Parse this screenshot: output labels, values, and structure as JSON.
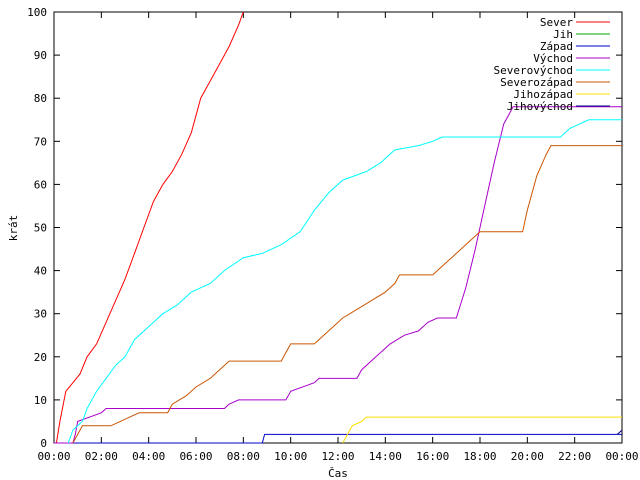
{
  "chart_data": {
    "type": "line",
    "title": "",
    "xlabel": "Čas",
    "ylabel": "krát",
    "ylim": [
      0,
      100
    ],
    "xlim": [
      0,
      24
    ],
    "x_unit": "hours",
    "yticks": [
      0,
      10,
      20,
      30,
      40,
      50,
      60,
      70,
      80,
      90,
      100
    ],
    "xticks": [
      {
        "value": 0,
        "label": "00:00"
      },
      {
        "value": 2,
        "label": "02:00"
      },
      {
        "value": 4,
        "label": "04:00"
      },
      {
        "value": 6,
        "label": "06:00"
      },
      {
        "value": 8,
        "label": "08:00"
      },
      {
        "value": 10,
        "label": "10:00"
      },
      {
        "value": 12,
        "label": "12:00"
      },
      {
        "value": 14,
        "label": "14:00"
      },
      {
        "value": 16,
        "label": "16:00"
      },
      {
        "value": 18,
        "label": "18:00"
      },
      {
        "value": 20,
        "label": "20:00"
      },
      {
        "value": 22,
        "label": "22:00"
      },
      {
        "value": 24,
        "label": "00:00"
      }
    ],
    "grid": false,
    "legend_position": "top-right",
    "series": [
      {
        "name": "Sever",
        "color": "#ff0000",
        "points": [
          [
            0.1,
            0
          ],
          [
            0.25,
            5
          ],
          [
            0.5,
            12
          ],
          [
            0.8,
            14
          ],
          [
            1.1,
            16
          ],
          [
            1.4,
            20
          ],
          [
            1.8,
            23
          ],
          [
            2.2,
            28
          ],
          [
            2.6,
            33
          ],
          [
            3.0,
            38
          ],
          [
            3.4,
            44
          ],
          [
            3.8,
            50
          ],
          [
            4.2,
            56
          ],
          [
            4.6,
            60
          ],
          [
            5.0,
            63
          ],
          [
            5.4,
            67
          ],
          [
            5.8,
            72
          ],
          [
            6.2,
            80
          ],
          [
            6.6,
            84
          ],
          [
            7.0,
            88
          ],
          [
            7.4,
            92
          ],
          [
            7.8,
            97
          ],
          [
            8.0,
            100
          ]
        ]
      },
      {
        "name": "Jih",
        "color": "#00aa00",
        "points": []
      },
      {
        "name": "Západ",
        "color": "#0000cc",
        "points": [
          [
            0.0,
            0
          ],
          [
            8.8,
            0
          ],
          [
            8.9,
            2
          ],
          [
            24.0,
            2
          ]
        ]
      },
      {
        "name": "Východ",
        "color": "#aa00cc",
        "points": [
          [
            0.0,
            0
          ],
          [
            0.8,
            0
          ],
          [
            0.9,
            2
          ],
          [
            1.0,
            5
          ],
          [
            2.0,
            7
          ],
          [
            2.2,
            8
          ],
          [
            7.2,
            8
          ],
          [
            7.4,
            9
          ],
          [
            7.8,
            10
          ],
          [
            9.8,
            10
          ],
          [
            10.0,
            12
          ],
          [
            11.0,
            14
          ],
          [
            11.2,
            15
          ],
          [
            12.8,
            15
          ],
          [
            13.0,
            17
          ],
          [
            13.6,
            20
          ],
          [
            14.2,
            23
          ],
          [
            14.8,
            25
          ],
          [
            15.4,
            26
          ],
          [
            15.8,
            28
          ],
          [
            16.2,
            29
          ],
          [
            17.0,
            29
          ],
          [
            17.4,
            36
          ],
          [
            17.8,
            45
          ],
          [
            18.2,
            55
          ],
          [
            18.6,
            65
          ],
          [
            19.0,
            74
          ],
          [
            19.4,
            78
          ],
          [
            24.0,
            78
          ]
        ]
      },
      {
        "name": "Severovýchod",
        "color": "#00ffff",
        "points": [
          [
            0.6,
            0
          ],
          [
            0.8,
            3
          ],
          [
            1.2,
            5
          ],
          [
            1.4,
            8
          ],
          [
            1.8,
            12
          ],
          [
            2.2,
            15
          ],
          [
            2.6,
            18
          ],
          [
            3.0,
            20
          ],
          [
            3.4,
            24
          ],
          [
            4.0,
            27
          ],
          [
            4.6,
            30
          ],
          [
            5.2,
            32
          ],
          [
            5.8,
            35
          ],
          [
            6.6,
            37
          ],
          [
            7.2,
            40
          ],
          [
            8.0,
            43
          ],
          [
            8.8,
            44
          ],
          [
            9.6,
            46
          ],
          [
            10.4,
            49
          ],
          [
            11.0,
            54
          ],
          [
            11.6,
            58
          ],
          [
            12.2,
            61
          ],
          [
            13.2,
            63
          ],
          [
            13.8,
            65
          ],
          [
            14.4,
            68
          ],
          [
            15.4,
            69
          ],
          [
            16.0,
            70
          ],
          [
            16.4,
            71
          ],
          [
            21.4,
            71
          ],
          [
            21.8,
            73
          ],
          [
            22.2,
            74
          ],
          [
            22.6,
            75
          ],
          [
            24.0,
            75
          ]
        ]
      },
      {
        "name": "Severozápad",
        "color": "#cc5500",
        "points": [
          [
            0.8,
            0
          ],
          [
            1.0,
            2
          ],
          [
            1.2,
            4
          ],
          [
            2.4,
            4
          ],
          [
            2.8,
            5
          ],
          [
            3.2,
            6
          ],
          [
            3.6,
            7
          ],
          [
            4.8,
            7
          ],
          [
            5.0,
            9
          ],
          [
            5.6,
            11
          ],
          [
            6.0,
            13
          ],
          [
            6.6,
            15
          ],
          [
            7.0,
            17
          ],
          [
            7.4,
            19
          ],
          [
            9.6,
            19
          ],
          [
            9.8,
            21
          ],
          [
            10.0,
            23
          ],
          [
            11.0,
            23
          ],
          [
            11.4,
            25
          ],
          [
            11.8,
            27
          ],
          [
            12.2,
            29
          ],
          [
            12.8,
            31
          ],
          [
            13.4,
            33
          ],
          [
            14.0,
            35
          ],
          [
            14.4,
            37
          ],
          [
            14.6,
            39
          ],
          [
            16.0,
            39
          ],
          [
            16.4,
            41
          ],
          [
            16.8,
            43
          ],
          [
            17.2,
            45
          ],
          [
            17.6,
            47
          ],
          [
            18.0,
            49
          ],
          [
            19.8,
            49
          ],
          [
            20.0,
            54
          ],
          [
            20.4,
            62
          ],
          [
            20.8,
            67
          ],
          [
            21.0,
            69
          ],
          [
            24.0,
            69
          ]
        ]
      },
      {
        "name": "Jihozápad",
        "color": "#ffdd00",
        "points": [
          [
            12.2,
            0
          ],
          [
            12.4,
            2
          ],
          [
            12.6,
            4
          ],
          [
            13.0,
            5
          ],
          [
            13.2,
            6
          ],
          [
            24.0,
            6
          ]
        ]
      },
      {
        "name": "Jihovýchod",
        "color": "#000080",
        "points": [
          [
            23.8,
            2
          ],
          [
            24.0,
            3
          ]
        ]
      }
    ]
  }
}
